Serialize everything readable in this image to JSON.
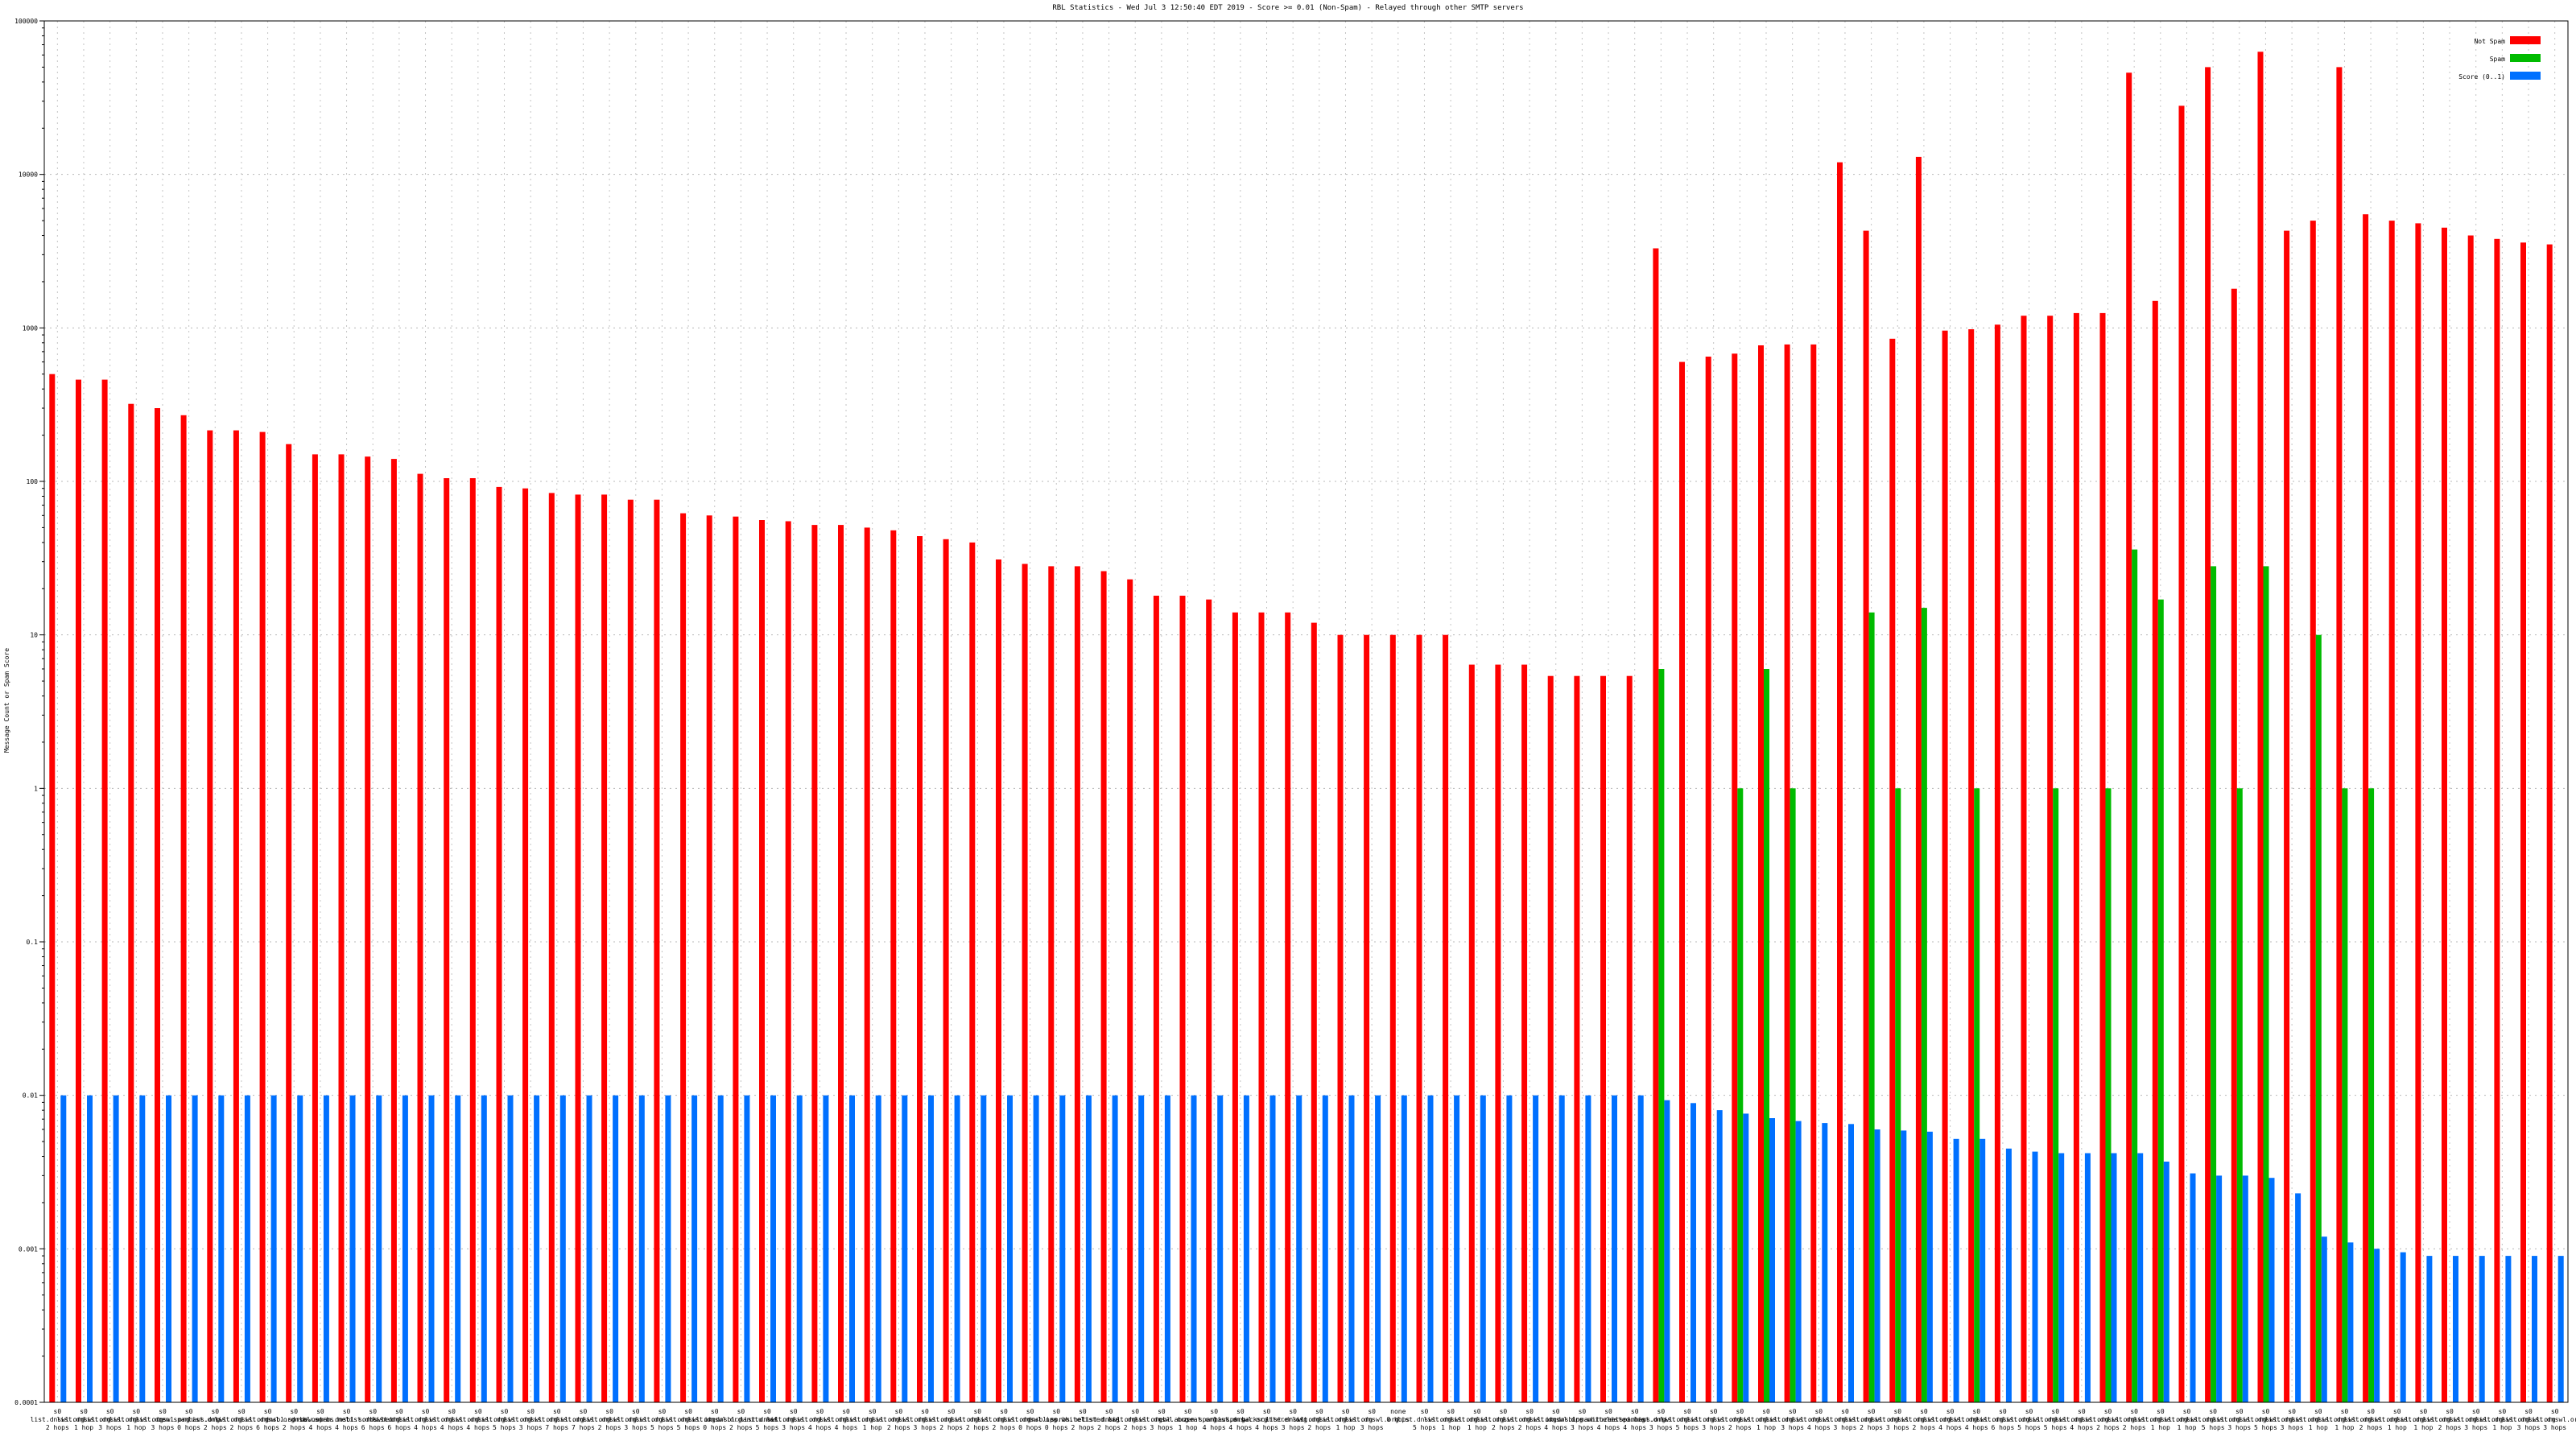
{
  "chart_data": {
    "type": "bar",
    "title": "RBL Statistics - Wed Jul  3 12:50:40 EDT 2019 - Score >= 0.01 (Non-Spam) - Relayed through other SMTP servers",
    "ylabel": "Message Count or Spam Score",
    "xlabel": "",
    "yscale": "log",
    "ylim": [
      0.0001,
      100000
    ],
    "yticks": [
      0.0001,
      0.001,
      0.01,
      0.1,
      1,
      10,
      100,
      1000,
      10000,
      100000
    ],
    "ytick_labels": [
      "0.0001",
      "0.001",
      "0.01",
      "0.1",
      "1",
      "10",
      "100",
      "1000",
      "10000",
      "100000"
    ],
    "grid": true,
    "legend_position": "top-right",
    "categories": [
      "s0 list.dnswl.org 2 hops",
      "s0 list.dnswl.org 1 hop",
      "s0 list.dnswl.org 3 hops",
      "s0 list.dnswl.org 1 hop",
      "s0 list.dnswl.org 3 hops",
      "s0 zen.spamhaus.org 0 hops",
      "s0 list.dnswl.org 2 hops",
      "s0 list.dnswl.org 2 hops",
      "s0 list.dnswl.org 6 hops",
      "s0 dnsbl.sorbs.net 2 hops",
      "s0 dnsbl.sorbs.net 4 hops",
      "s0 new.spam.dnsbl.sorbs.net 4 hops",
      "s0 list.dnswl.org 6 hops",
      "s0 list.dnswl.org 6 hops",
      "s0 list.dnswl.org 4 hops",
      "s0 list.dnswl.org 4 hops",
      "s0 list.dnswl.org 4 hops",
      "s0 list.dnswl.org 5 hops",
      "s0 list.dnswl.org 3 hops",
      "s0 list.dnswl.org 7 hops",
      "s0 list.dnswl.org 7 hops",
      "s0 list.dnswl.org 2 hops",
      "s0 list.dnswl.org 3 hops",
      "s0 list.dnswl.org 5 hops",
      "s0 list.dnswl.org 5 hops",
      "s0 list.dnswl.org 0 hops",
      "s0 ix.dnsbl.manitu.net 2 hops",
      "s0 list.dnswl.org 5 hops",
      "s0 list.dnswl.org 3 hops",
      "s0 list.dnswl.org 4 hops",
      "s0 list.dnswl.org 4 hops",
      "s0 list.dnswl.org 1 hop",
      "s0 list.dnswl.org 2 hops",
      "s0 list.dnswl.org 3 hops",
      "s0 list.dnswl.org 2 hops",
      "s0 list.dnswl.org 2 hops",
      "s0 list.dnswl.org 2 hops",
      "s0 list.dnswl.org 0 hops",
      "s0 dnsbl.sorbs.net 0 hops",
      "s0 ips.whitelisted.org 2 hops",
      "s0 list.dnswl.org 2 hops",
      "s0 list.dnswl.org 2 hops",
      "s0 list.dnswl.org 3 hops",
      "s0 cbl.abuseat.org 1 hop",
      "s0 zen.spamhaus.org 4 hops",
      "s0 list.dnswl.org 4 hops",
      "s0 ips.backscatterer.org 4 hops",
      "s0 list.dnswl.org 3 hops",
      "s0 list.dnswl.org 2 hops",
      "s0 list.dnswl.org 1 hop",
      "s0 list.dnswl.org 3 hops",
      "none 0 hops",
      "s0 list.dnswl.org 5 hops",
      "s0 list.dnswl.org 1 hop",
      "s0 list.dnswl.org 1 hop",
      "s0 list.dnswl.org 2 hops",
      "s0 list.dnswl.org 2 hops",
      "s0 list.dnswl.org 4 hops",
      "s0 ix.dnsbl.manitu.net 3 hops",
      "s0 ips.whitelisted.org 4 hops",
      "s0 zen.spamhaus.org 4 hops",
      "s0 list.dnswl.org 3 hops",
      "s0 list.dnswl.org 5 hops",
      "s0 list.dnswl.org 3 hops",
      "s0 list.dnswl.org 2 hops",
      "s0 list.dnswl.org 1 hop",
      "s0 list.dnswl.org 3 hops",
      "s0 list.dnswl.org 4 hops",
      "s0 list.dnswl.org 3 hops",
      "s0 list.dnswl.org 2 hops",
      "s0 list.dnswl.org 3 hops",
      "s0 list.dnswl.org 2 hops",
      "s0 list.dnswl.org 4 hops",
      "s0 list.dnswl.org 4 hops",
      "s0 list.dnswl.org 6 hops",
      "s0 list.dnswl.org 5 hops",
      "s0 list.dnswl.org 5 hops",
      "s0 list.dnswl.org 4 hops",
      "s0 list.dnswl.org 2 hops",
      "s0 list.dnswl.org 2 hops",
      "s0 list.dnswl.org 1 hop",
      "s0 list.dnswl.org 1 hop",
      "s0 list.dnswl.org 5 hops",
      "s0 list.dnswl.org 3 hops",
      "s0 list.dnswl.org 5 hops",
      "s0 list.dnswl.org 3 hops",
      "s0 list.dnswl.org 1 hop",
      "s0 list.dnswl.org 1 hop",
      "s0 list.dnswl.org 2 hops",
      "s0 list.dnswl.org 1 hop",
      "s0 list.dnswl.org 1 hop",
      "s0 list.dnswl.org 2 hops",
      "s0 list.dnswl.org 3 hops",
      "s0 list.dnswl.org 1 hop",
      "s0 list.dnswl.org 3 hops",
      "s0 list.dnswl.org 3 hops"
    ],
    "series": [
      {
        "name": "Not Spam",
        "color": "#ff0000",
        "values": [
          500,
          460,
          460,
          320,
          300,
          270,
          215,
          215,
          210,
          175,
          150,
          150,
          145,
          140,
          112,
          105,
          105,
          92,
          90,
          84,
          82,
          82,
          76,
          76,
          62,
          60,
          59,
          56,
          55,
          52,
          52,
          50,
          48,
          44,
          42,
          40,
          31,
          29,
          28,
          28,
          26,
          23,
          18,
          18,
          17,
          14,
          14,
          14,
          12,
          10,
          10,
          10,
          10,
          10,
          6.4,
          6.4,
          6.4,
          5.4,
          5.4,
          5.4,
          5.4,
          3300,
          600,
          650,
          680,
          770,
          780,
          780,
          12000,
          4300,
          850,
          13000,
          960,
          980,
          1050,
          1200,
          1200,
          1250,
          1250,
          46000,
          1500,
          28000,
          50000,
          1800,
          63000,
          4300,
          5000,
          50000,
          5500,
          5000,
          4800,
          4500,
          4000,
          3800,
          3600,
          3500
        ]
      },
      {
        "name": "Spam",
        "color": "#00bb00",
        "values": [
          0,
          0,
          0,
          0,
          0,
          0,
          0,
          0,
          0,
          0,
          0,
          0,
          0,
          0,
          0,
          0,
          0,
          0,
          0,
          0,
          0,
          0,
          0,
          0,
          0,
          0,
          0,
          0,
          0,
          0,
          0,
          0,
          0,
          0,
          0,
          0,
          0,
          0,
          0,
          0,
          0,
          0,
          0,
          0,
          0,
          0,
          0,
          0,
          0,
          0,
          0,
          0,
          0,
          0,
          0,
          0,
          0,
          0,
          0,
          0,
          0,
          6,
          0,
          0,
          1,
          6,
          1,
          0,
          0,
          14,
          1,
          15,
          0,
          1,
          0,
          0,
          1,
          0,
          1,
          36,
          17,
          0,
          28,
          1,
          28,
          0,
          10,
          1,
          1,
          0,
          0,
          0,
          0,
          0,
          0,
          0
        ]
      },
      {
        "name": "Score (0..1)",
        "color": "#0070ff",
        "values": [
          0.01,
          0.01,
          0.01,
          0.01,
          0.01,
          0.01,
          0.01,
          0.01,
          0.01,
          0.01,
          0.01,
          0.01,
          0.01,
          0.01,
          0.01,
          0.01,
          0.01,
          0.01,
          0.01,
          0.01,
          0.01,
          0.01,
          0.01,
          0.01,
          0.01,
          0.01,
          0.01,
          0.01,
          0.01,
          0.01,
          0.01,
          0.01,
          0.01,
          0.01,
          0.01,
          0.01,
          0.01,
          0.01,
          0.01,
          0.01,
          0.01,
          0.01,
          0.01,
          0.01,
          0.01,
          0.01,
          0.01,
          0.01,
          0.01,
          0.01,
          0.01,
          0.01,
          0.01,
          0.01,
          0.01,
          0.01,
          0.01,
          0.01,
          0.01,
          0.01,
          0.01,
          0.0093,
          0.0089,
          0.008,
          0.0076,
          0.0071,
          0.0068,
          0.0066,
          0.0065,
          0.006,
          0.0059,
          0.0058,
          0.0052,
          0.0052,
          0.0045,
          0.0043,
          0.0042,
          0.0042,
          0.0042,
          0.0042,
          0.0037,
          0.0031,
          0.003,
          0.003,
          0.0029,
          0.0023,
          0.0012,
          0.0011,
          0.001,
          0.00095,
          0.0009,
          0.0009,
          0.0009,
          0.0009,
          0.0009,
          0.0009
        ]
      }
    ]
  }
}
